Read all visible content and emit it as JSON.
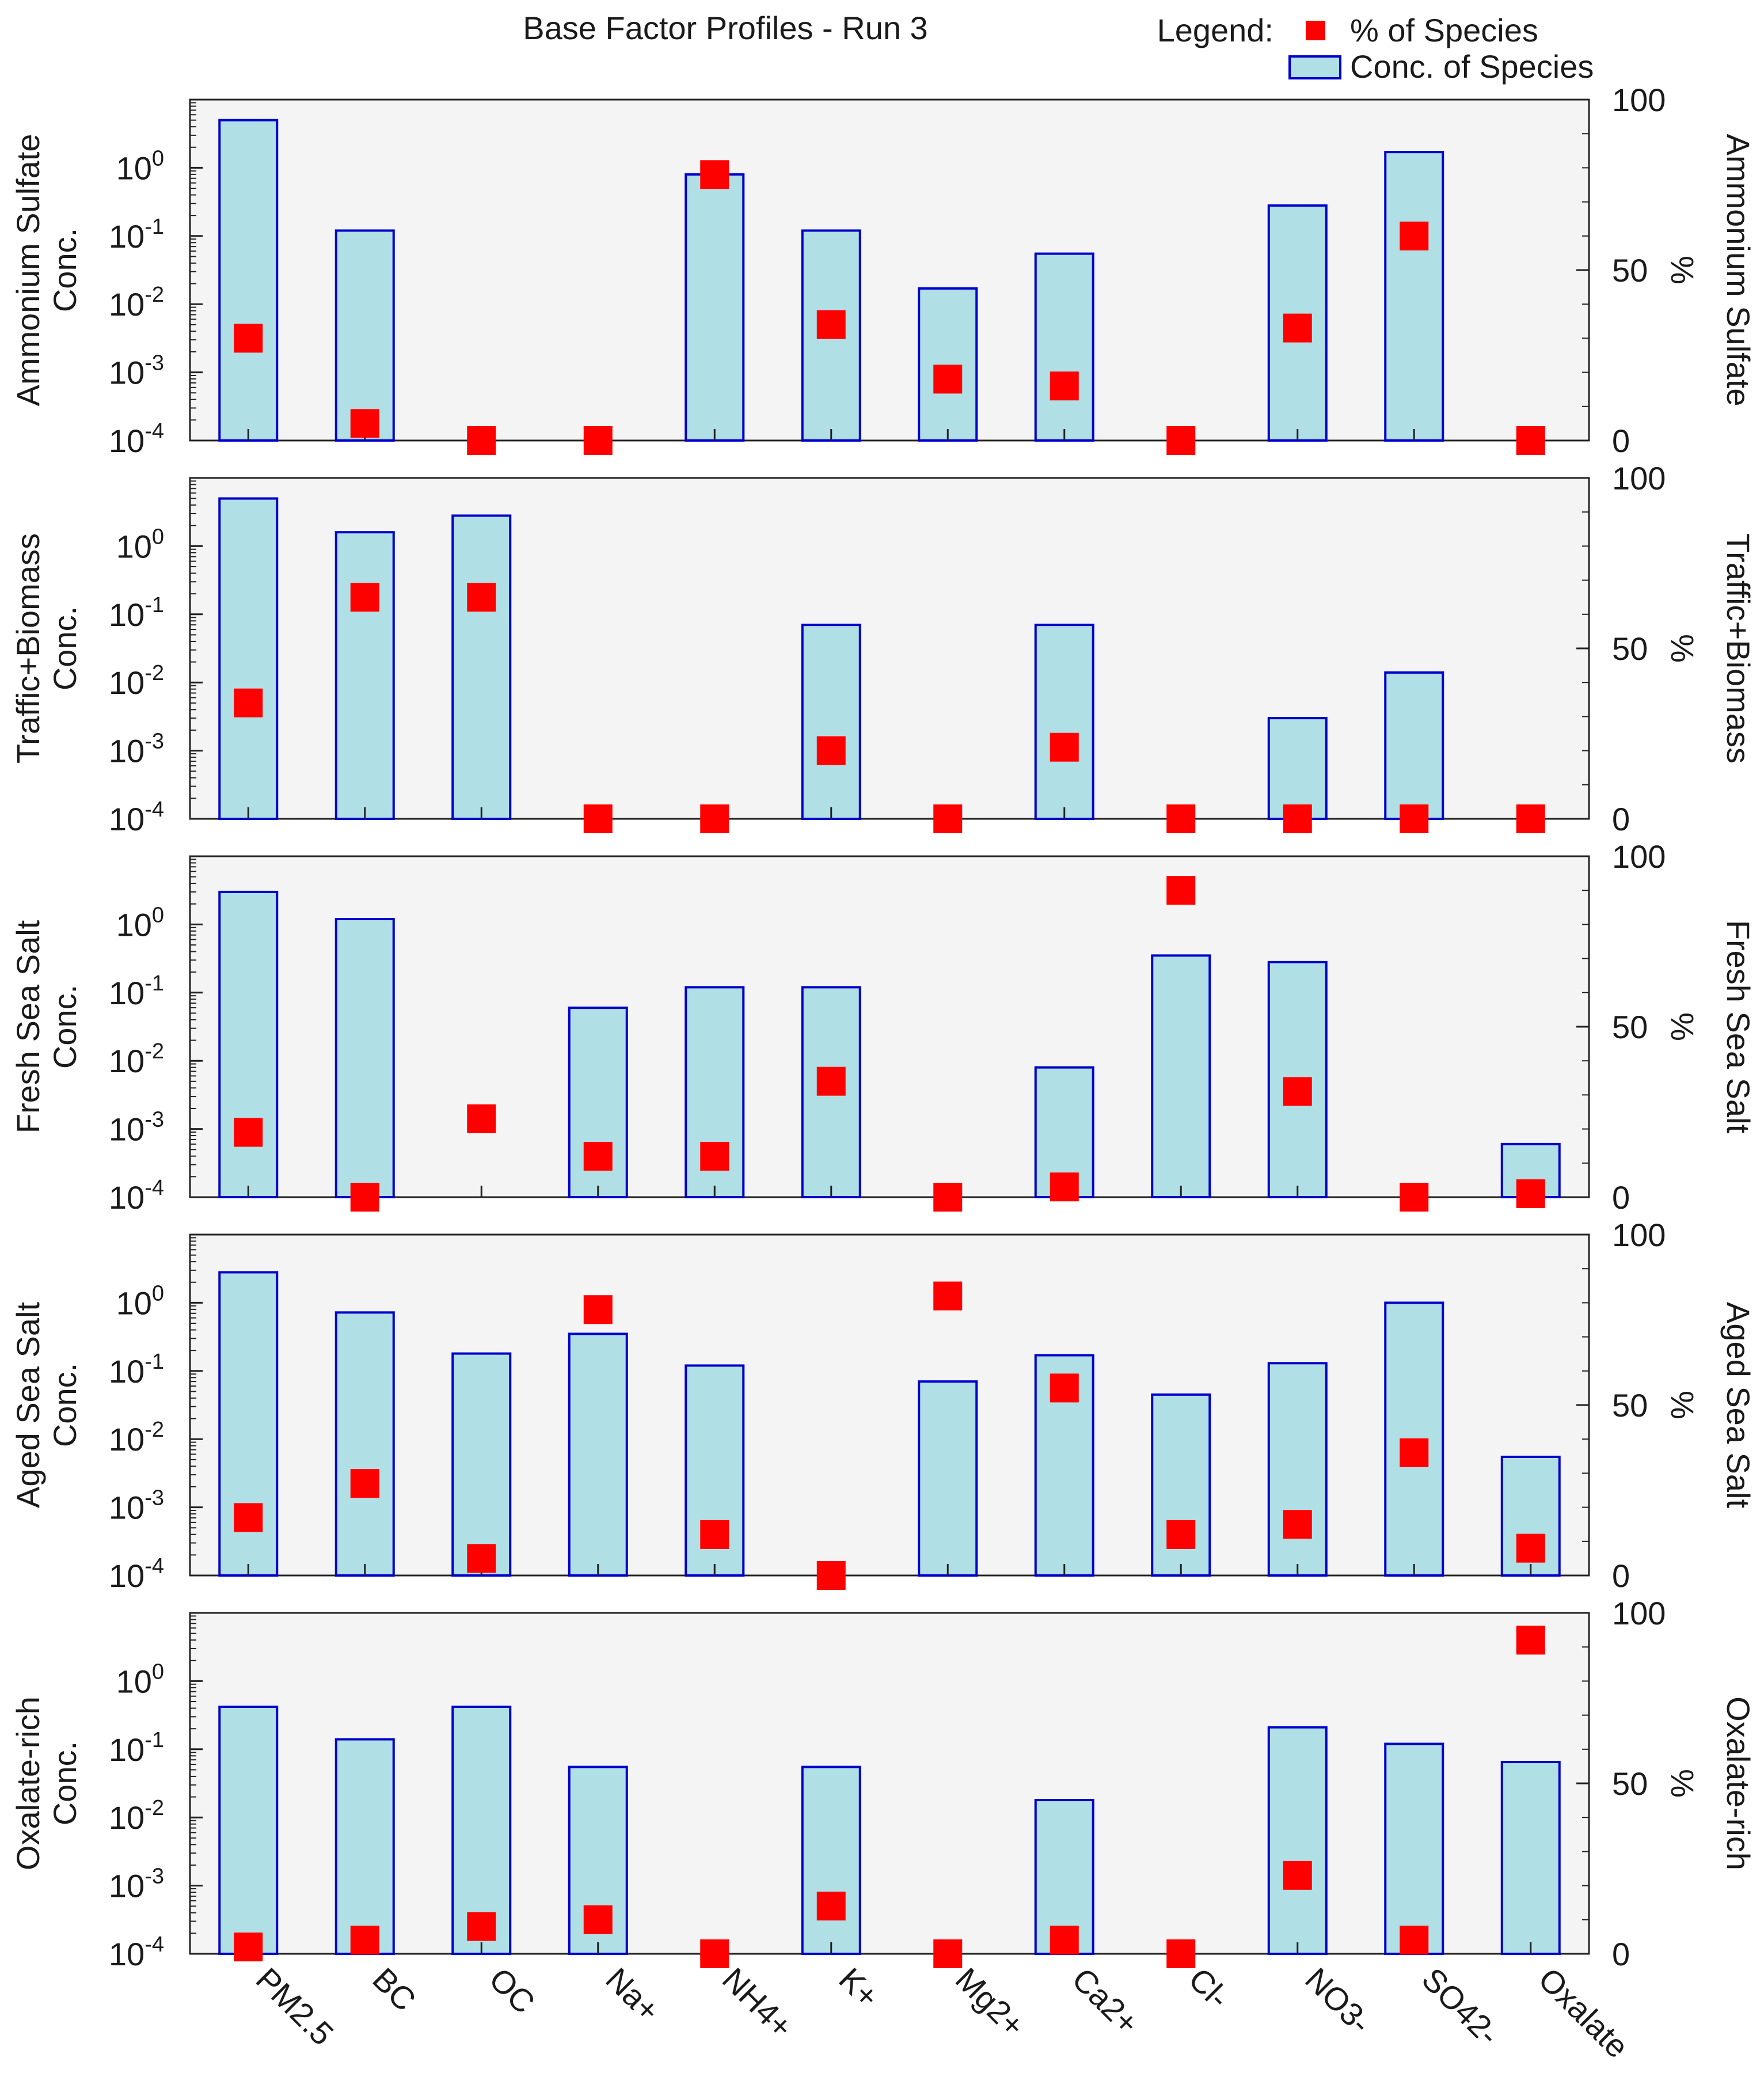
{
  "chart_data": {
    "type": "bar",
    "title": "Base Factor Profiles - Run 3",
    "legend": {
      "label": "Legend:",
      "items": [
        "% of Species",
        "Conc. of Species"
      ],
      "placement": "top-right"
    },
    "categories": [
      "PM2.5",
      "BC",
      "OC",
      "Na+",
      "NH4+",
      "K+",
      "Mg2+",
      "Ca2+",
      "Cl-",
      "NO3-",
      "SO42-",
      "Oxalate"
    ],
    "left_axis": {
      "label": "Conc.",
      "scale": "log",
      "ylim": [
        0.0001,
        10
      ],
      "ticks": [
        {
          "base": "10",
          "exp": "0"
        },
        {
          "base": "10",
          "exp": "-1"
        },
        {
          "base": "10",
          "exp": "-2"
        },
        {
          "base": "10",
          "exp": "-3"
        },
        {
          "base": "10",
          "exp": "-4"
        }
      ]
    },
    "right_axis": {
      "unit": "%",
      "ylim": [
        0,
        100
      ],
      "ticks": [
        "100",
        "50",
        "0"
      ]
    },
    "panels": [
      {
        "name": "Ammonium Sulfate",
        "conc": [
          5,
          0.12,
          null,
          null,
          0.8,
          0.12,
          0.017,
          0.055,
          null,
          0.28,
          1.7,
          null
        ],
        "percent": [
          30,
          5,
          0,
          0,
          78,
          34,
          18,
          16,
          0,
          33,
          60,
          0
        ]
      },
      {
        "name": "Traffic+Biomass",
        "conc": [
          5,
          1.6,
          2.8,
          null,
          null,
          0.07,
          null,
          0.07,
          null,
          0.003,
          0.014,
          null
        ],
        "percent": [
          34,
          65,
          65,
          0,
          0,
          20,
          0,
          21,
          0,
          0,
          0,
          0
        ]
      },
      {
        "name": "Fresh Sea Salt",
        "conc": [
          3,
          1.2,
          null,
          0.06,
          0.12,
          0.12,
          null,
          0.008,
          0.35,
          0.28,
          null,
          0.0006
        ],
        "percent": [
          19,
          0,
          23,
          12,
          12,
          34,
          0,
          3,
          90,
          31,
          0,
          1
        ]
      },
      {
        "name": "Aged Sea Salt",
        "conc": [
          2.8,
          0.72,
          0.18,
          0.35,
          0.12,
          null,
          0.07,
          0.17,
          0.045,
          0.13,
          1.0,
          0.0055
        ],
        "percent": [
          17,
          27,
          5,
          78,
          12,
          0,
          82,
          55,
          12,
          15,
          36,
          8
        ]
      },
      {
        "name": "Oxalate-rich",
        "conc": [
          0.42,
          0.14,
          0.42,
          0.055,
          null,
          0.055,
          null,
          0.018,
          null,
          0.21,
          0.12,
          0.065
        ],
        "percent": [
          2,
          4,
          8,
          10,
          0,
          14,
          0,
          4,
          0,
          23,
          4,
          92
        ]
      }
    ]
  }
}
